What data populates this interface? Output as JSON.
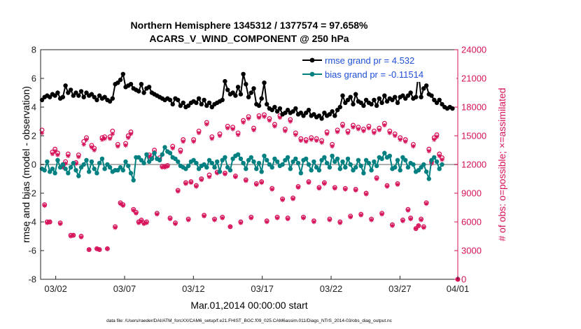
{
  "chart_data": {
    "type": "line",
    "title": "Northern Hemisphere 1345312 / 1377574 = 97.658%",
    "subtitle": "ACARS_V_WIND_COMPONENT @ 250 hPa",
    "ylabel_left": "rmse and bias (model - observation)",
    "ylabel_right": "# of obs: o=possible; ×=assimilated",
    "xlabel": "Mar.01,2014 00:00:00 start",
    "footnote": "data file: /Users/raeder/DAI/ATM_forcXX/CAM6_setup/f.e21.FHIST_BGC.f09_025.CAM6assim.011/Diags_NTrS_2014-03/obs_diag_output.nc",
    "colors": {
      "rmse": "#000000",
      "bias": "#008080",
      "obs": "#d6125a",
      "zero": "#b0b0b0",
      "legend_text": "#1f4fd8"
    },
    "xlim": [
      0.9,
      31.2
    ],
    "ylim_left": [
      -8,
      8
    ],
    "ylim_right": [
      0,
      24000
    ],
    "x_ticks": [
      {
        "x": 2,
        "label": "03/02"
      },
      {
        "x": 7,
        "label": "03/07"
      },
      {
        "x": 12,
        "label": "03/12"
      },
      {
        "x": 17,
        "label": "03/17"
      },
      {
        "x": 22,
        "label": "03/22"
      },
      {
        "x": 27,
        "label": "03/27"
      },
      {
        "x": 32,
        "label": "04/01"
      }
    ],
    "y_ticks_left": [
      "8",
      "6",
      "4",
      "2",
      "0",
      "-2",
      "-4",
      "-6",
      "-8"
    ],
    "y_ticks_right": [
      "24000",
      "21000",
      "18000",
      "15000",
      "12000",
      "9000",
      "6000",
      "3000",
      "0"
    ],
    "series": [
      {
        "name": "rmse",
        "legend": "rmse grand pr = 4.532",
        "values": [
          4.5,
          4.7,
          4.8,
          4.7,
          4.9,
          4.8,
          5.0,
          4.6,
          4.7,
          5.5,
          5.0,
          5.2,
          4.8,
          5.0,
          4.8,
          5.1,
          4.7,
          5.0,
          4.8,
          4.9,
          4.7,
          4.5,
          4.8,
          4.6,
          4.7,
          4.5,
          4.4,
          4.6,
          5.6,
          5.7,
          5.9,
          6.3,
          5.4,
          5.5,
          5.6,
          5.3,
          5.2,
          5.1,
          5.6,
          5.0,
          5.3,
          5.4,
          5.0,
          4.9,
          4.8,
          4.7,
          4.6,
          4.5,
          4.6,
          4.5,
          4.2,
          4.6,
          4.5,
          4.1,
          4.3,
          4.0,
          4.1,
          4.3,
          4.4,
          4.3,
          4.6,
          4.2,
          4.5,
          4.1,
          4.3,
          4.0,
          4.2,
          4.3,
          4.4,
          4.5,
          5.8,
          5.2,
          4.9,
          5.0,
          4.8,
          5.4,
          4.9,
          6.3,
          5.6,
          4.7,
          5.0,
          5.3,
          4.2,
          4.1,
          4.6,
          5.7,
          4.2,
          3.9,
          3.8,
          4.0,
          3.7,
          3.9,
          3.5,
          3.6,
          3.8,
          3.6,
          3.7,
          3.9,
          3.5,
          3.6,
          3.4,
          3.6,
          3.8,
          3.4,
          3.5,
          3.3,
          3.4,
          3.2,
          3.6,
          3.4,
          3.5,
          3.7,
          3.4,
          3.8,
          4.0,
          4.8,
          4.3,
          4.5,
          4.7,
          4.2,
          4.9,
          4.4,
          4.3,
          4.1,
          4.5,
          4.3,
          4.2,
          4.5,
          4.1,
          4.6,
          4.3,
          4.8,
          4.4,
          4.6,
          4.5,
          4.7,
          4.3,
          4.7,
          4.8,
          4.6,
          4.8,
          5.0,
          4.6,
          4.7,
          6.4,
          4.7,
          5.3,
          5.5,
          4.9,
          4.8,
          4.5,
          4.3,
          4.5,
          4.2,
          4.0,
          3.9,
          4.0,
          3.9
        ]
      },
      {
        "name": "bias",
        "legend": "bias grand pr = -0.11514",
        "values": [
          -0.3,
          -0.4,
          0.2,
          -0.5,
          -0.3,
          -0.6,
          0.3,
          -0.2,
          0.0,
          -0.3,
          -0.6,
          -0.2,
          0.1,
          -0.4,
          -0.8,
          -0.2,
          0.0,
          0.3,
          -0.5,
          0.2,
          -0.3,
          -0.6,
          0.1,
          0.4,
          -0.3,
          0.0,
          -0.2,
          -0.5,
          -0.4,
          -0.4,
          -0.2,
          -0.4,
          0.2,
          -0.1,
          -0.6,
          -1.1,
          0.5,
          0.5,
          0.3,
          0.1,
          0.7,
          0.2,
          0.4,
          0.8,
          0.4,
          0.3,
          0.7,
          1.2,
          0.9,
          0.8,
          0.5,
          0.4,
          0.2,
          -0.1,
          -0.2,
          -0.3,
          -0.1,
          0.2,
          0.3,
          0.1,
          -0.3,
          -0.1,
          0.0,
          -0.2,
          0.3,
          0.1,
          -0.2,
          0.2,
          -0.5,
          0.3,
          0.5,
          -0.2,
          -0.4,
          0.4,
          0.6,
          0.7,
          0.4,
          0.1,
          -0.3,
          0.3,
          0.5,
          0.2,
          -0.3,
          0.1,
          -0.5,
          0.6,
          0.3,
          0.0,
          -0.2,
          0.4,
          0.2,
          -0.1,
          0.0,
          0.3,
          0.5,
          -0.3,
          0.2,
          0.4,
          0.1,
          -0.6,
          0.3,
          0.4,
          0.0,
          -0.4,
          0.2,
          -0.2,
          -0.4,
          0.3,
          0.5,
          0.1,
          -0.2,
          0.6,
          0.2,
          0.4,
          -0.3,
          0.2,
          -0.2,
          0.4,
          0.0,
          -0.4,
          -0.2,
          0.3,
          -0.1,
          -0.6,
          0.3,
          0.1,
          -0.4,
          0.2,
          -0.1,
          0.5,
          0.4,
          0.8,
          0.5,
          0.6,
          -0.3,
          -0.2,
          0.3,
          -0.4,
          0.5,
          0.3,
          -0.2,
          0.1,
          0.0,
          -0.5,
          -0.4,
          -0.2,
          0.0,
          -0.5,
          -1.0,
          0.3,
          0.5,
          0.2,
          -0.3,
          0.0
        ]
      },
      {
        "name": "obs_possible",
        "marker": "o",
        "values": [
          15600,
          7800,
          6000,
          6000,
          13300,
          13600,
          13200,
          5900,
          11800,
          12300,
          13100,
          4600,
          4600,
          12200,
          13000,
          4500,
          14400,
          14800,
          3100,
          14000,
          13700,
          3200,
          3100,
          14800,
          14900,
          3200,
          14900,
          15500,
          5500,
          14100,
          8000,
          7800,
          14200,
          15000,
          15400,
          7300,
          7000,
          6000,
          6200,
          5900,
          6000,
          13000,
          12900,
          13500,
          6900,
          12700,
          11800,
          11800,
          11900,
          6400,
          13900,
          5900,
          9300,
          13500,
          14600,
          10100,
          6300,
          10200,
          14600,
          9800,
          15500,
          10500,
          6700,
          16400,
          10900,
          14900,
          6300,
          11200,
          15200,
          6500,
          11100,
          16000,
          5500,
          15900,
          10800,
          15300,
          6000,
          16600,
          10400,
          17000,
          6500,
          15800,
          10000,
          17100,
          10200,
          17200,
          6100,
          16800,
          9500,
          16200,
          6500,
          17100,
          8400,
          15700,
          6400,
          16700,
          8500,
          15300,
          9700,
          14700,
          6500,
          14600,
          10200,
          14800,
          6100,
          14700,
          9600,
          14500,
          10100,
          15400,
          6300,
          14100,
          9600,
          15600,
          6000,
          16200,
          9500,
          15500,
          6600,
          16100,
          9400,
          15900,
          6800,
          15700,
          9000,
          16000,
          6300,
          15500,
          10600,
          15800,
          6900,
          16300,
          9800,
          15500,
          5700,
          15200,
          10000,
          14800,
          6200,
          14600,
          7300,
          6400,
          14100,
          5300,
          5600,
          6300,
          5500,
          8000,
          13600,
          12300,
          14800,
          15100,
          13100,
          12700
        ]
      },
      {
        "name": "obs_assimilated",
        "marker": "x",
        "values": [
          15300,
          7700,
          5900,
          6000,
          13100,
          13400,
          13000,
          5800,
          11700,
          12100,
          12900,
          4500,
          4600,
          12100,
          12800,
          4400,
          14100,
          14600,
          3100,
          13800,
          13500,
          3200,
          3100,
          14600,
          14700,
          3200,
          14700,
          15200,
          5400,
          13900,
          7900,
          7700,
          14000,
          14800,
          15200,
          7200,
          6900,
          5900,
          6100,
          5800,
          5900,
          12800,
          12700,
          13300,
          6800,
          12500,
          11700,
          11700,
          11800,
          6300,
          13700,
          5800,
          9200,
          13300,
          14400,
          10000,
          6200,
          10100,
          14400,
          9700,
          15300,
          10400,
          6600,
          16200,
          10700,
          14700,
          6200,
          11100,
          15000,
          6400,
          11000,
          15800,
          5500,
          15700,
          10700,
          15100,
          5900,
          16400,
          10300,
          16800,
          6400,
          15600,
          9900,
          16900,
          10100,
          17000,
          6000,
          16600,
          9400,
          16000,
          6400,
          16900,
          8300,
          15500,
          6300,
          16500,
          8400,
          15100,
          9600,
          14500,
          6400,
          14400,
          10100,
          14600,
          6000,
          14500,
          9500,
          14300,
          10000,
          15200,
          6200,
          13900,
          9500,
          15400,
          5900,
          16000,
          9400,
          15300,
          6500,
          15900,
          9300,
          15700,
          6700,
          15500,
          8900,
          15800,
          6200,
          15300,
          10500,
          15600,
          6800,
          16100,
          9700,
          15300,
          5600,
          15000,
          9900,
          14600,
          6100,
          14400,
          7200,
          6300,
          13900,
          5300,
          5600,
          6200,
          5400,
          7900,
          13400,
          12100,
          14600,
          14900,
          12900,
          12500
        ]
      }
    ],
    "x_start": 1.0,
    "x_step": 0.1899
  }
}
